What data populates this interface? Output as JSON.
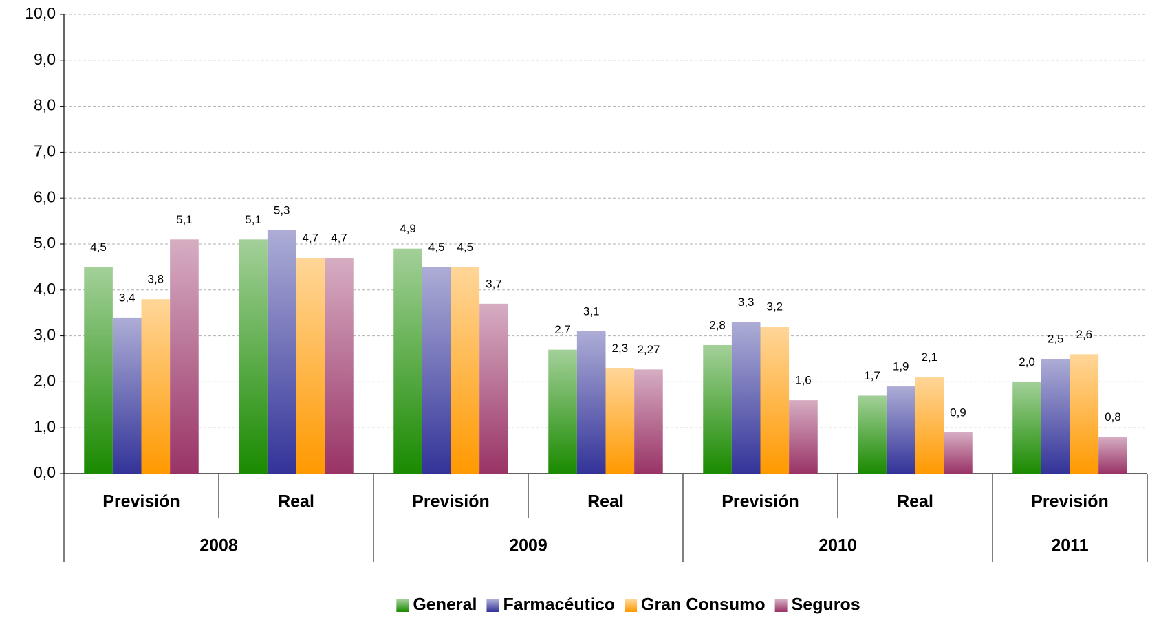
{
  "chart_data": {
    "type": "bar",
    "groups": [
      {
        "name": "2008",
        "categories": [
          "Previsión",
          "Real"
        ]
      },
      {
        "name": "2009",
        "categories": [
          "Previsión",
          "Real"
        ]
      },
      {
        "name": "2010",
        "categories": [
          "Previsión",
          "Real"
        ]
      },
      {
        "name": "2011",
        "categories": [
          "Previsión"
        ]
      }
    ],
    "series": [
      {
        "name": "General",
        "color": "#1a8a00",
        "values": [
          4.5,
          5.1,
          4.9,
          2.7,
          2.8,
          1.7,
          2.0
        ],
        "value_labels": [
          "4,5",
          "5,1",
          "4,9",
          "2,7",
          "2,8",
          "1,7",
          "2,0"
        ]
      },
      {
        "name": "Farmacéutico",
        "color": "#333399",
        "values": [
          3.4,
          5.3,
          4.5,
          3.1,
          3.3,
          1.9,
          2.5
        ],
        "value_labels": [
          "3,4",
          "5,3",
          "4,5",
          "3,1",
          "3,3",
          "1,9",
          "2,5"
        ]
      },
      {
        "name": "Gran Consumo",
        "color": "#ff9900",
        "values": [
          3.8,
          4.7,
          4.5,
          2.3,
          3.2,
          2.1,
          2.6
        ],
        "value_labels": [
          "3,8",
          "4,7",
          "4,5",
          "2,3",
          "3,2",
          "2,1",
          "2,6"
        ]
      },
      {
        "name": "Seguros",
        "color": "#993366",
        "values": [
          5.1,
          4.7,
          3.7,
          2.27,
          1.6,
          0.9,
          0.8
        ],
        "value_labels": [
          "5,1",
          "4,7",
          "3,7",
          "2,27",
          "1,6",
          "0,9",
          "0,8"
        ]
      }
    ],
    "ylim": [
      0,
      10
    ],
    "yticks": [
      {
        "value": 0,
        "label": "0,0"
      },
      {
        "value": 1,
        "label": "1,0"
      },
      {
        "value": 2,
        "label": "2,0"
      },
      {
        "value": 3,
        "label": "3,0"
      },
      {
        "value": 4,
        "label": "4,0"
      },
      {
        "value": 5,
        "label": "5,0"
      },
      {
        "value": 6,
        "label": "6,0"
      },
      {
        "value": 7,
        "label": "7,0"
      },
      {
        "value": 8,
        "label": "8,0"
      },
      {
        "value": 9,
        "label": "9,0"
      },
      {
        "value": 10,
        "label": "10,0"
      }
    ],
    "grid": true,
    "legend": "bottom"
  }
}
